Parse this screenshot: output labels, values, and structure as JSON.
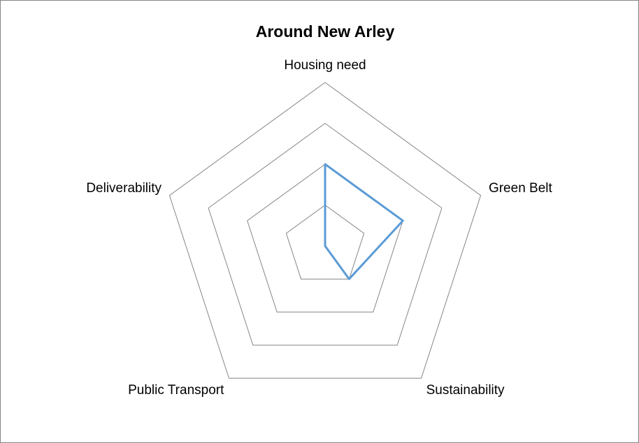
{
  "chart_data": {
    "type": "radar",
    "title": "Around New Arley",
    "categories": [
      "Housing need",
      "Green Belt",
      "Sustainability",
      "Public Transport",
      "Deliverability"
    ],
    "series": [
      {
        "color": "#5b9bd5",
        "values": [
          2,
          2,
          1,
          0,
          0
        ]
      }
    ],
    "ylim": [
      0,
      4
    ],
    "yticks": [
      1,
      2,
      3,
      4
    ],
    "grid": true
  }
}
